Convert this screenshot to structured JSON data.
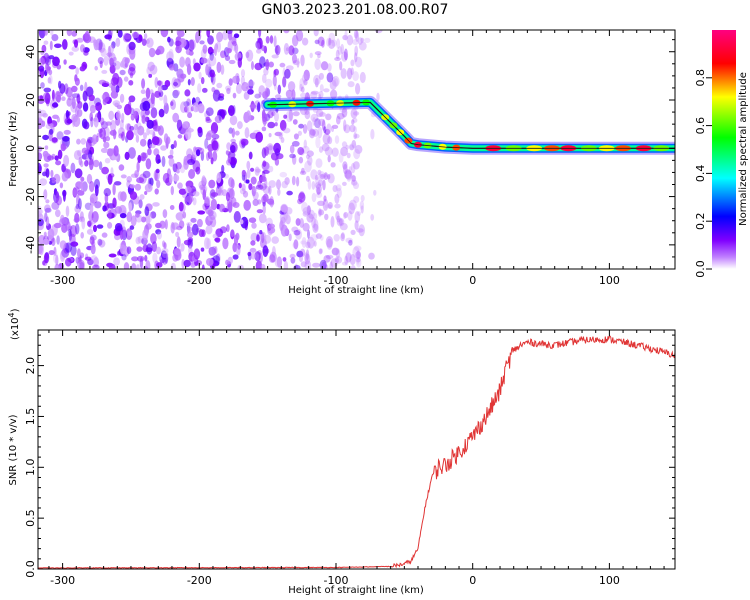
{
  "title": "GN03.2023.201.08.00.R07",
  "chart_data": [
    {
      "type": "heatmap",
      "xlabel": "Height of straight line (km)",
      "ylabel": "Frequency (Hz)",
      "xlim": [
        -318,
        148
      ],
      "ylim": [
        -50,
        49
      ],
      "xticks": [
        -300,
        -200,
        -100,
        0,
        100
      ],
      "yticks": [
        -40,
        -20,
        0,
        20,
        40
      ],
      "grid": false,
      "colorbar": {
        "label": "Normalized spectral amplitude",
        "range": [
          0,
          1
        ],
        "ticks": [
          "0.0",
          "0.2",
          "0.4",
          "0.6",
          "0.8"
        ],
        "colors": [
          "#ffffff",
          "#8000ff",
          "#0000ff",
          "#00ffff",
          "#00ff00",
          "#ffff00",
          "#ff0000",
          "#ff0080"
        ]
      },
      "noise_region": {
        "x_range": [
          -318,
          -80
        ],
        "y_range": [
          -50,
          49
        ]
      },
      "ridge": {
        "x": [
          -150,
          -75,
          -50,
          -45,
          -40,
          -20,
          0,
          50,
          100,
          148
        ],
        "y": [
          18,
          19,
          5,
          2,
          1.5,
          0.5,
          0,
          0,
          0,
          0
        ]
      }
    },
    {
      "type": "line",
      "xlabel": "Height of straight line (km)",
      "ylabel": "SNR (10 * v/v)",
      "y_multiplier": "(x10",
      "y_multiplier_exp": "4",
      "xlim": [
        -318,
        148
      ],
      "ylim": [
        0,
        23500
      ],
      "xticks": [
        -300,
        -200,
        -100,
        0,
        100
      ],
      "yticks": [
        "0.0",
        "0.5",
        "1.0",
        "1.5",
        "2.0"
      ],
      "ytick_values": [
        0,
        5000,
        10000,
        15000,
        20000
      ],
      "grid": false,
      "color": "#e03535",
      "series": [
        {
          "x": [
            -318,
            -100,
            -60,
            -50,
            -45,
            -40,
            -35,
            -30,
            -25,
            -20,
            -10,
            0,
            10,
            20,
            25,
            30,
            35,
            40,
            60,
            80,
            100,
            120,
            135,
            148
          ],
          "values": [
            100,
            150,
            250,
            500,
            800,
            2000,
            6000,
            9000,
            10000,
            10200,
            11500,
            13000,
            15000,
            17500,
            20000,
            21500,
            22000,
            22300,
            22000,
            22500,
            22600,
            22000,
            21500,
            21000
          ]
        }
      ]
    }
  ]
}
